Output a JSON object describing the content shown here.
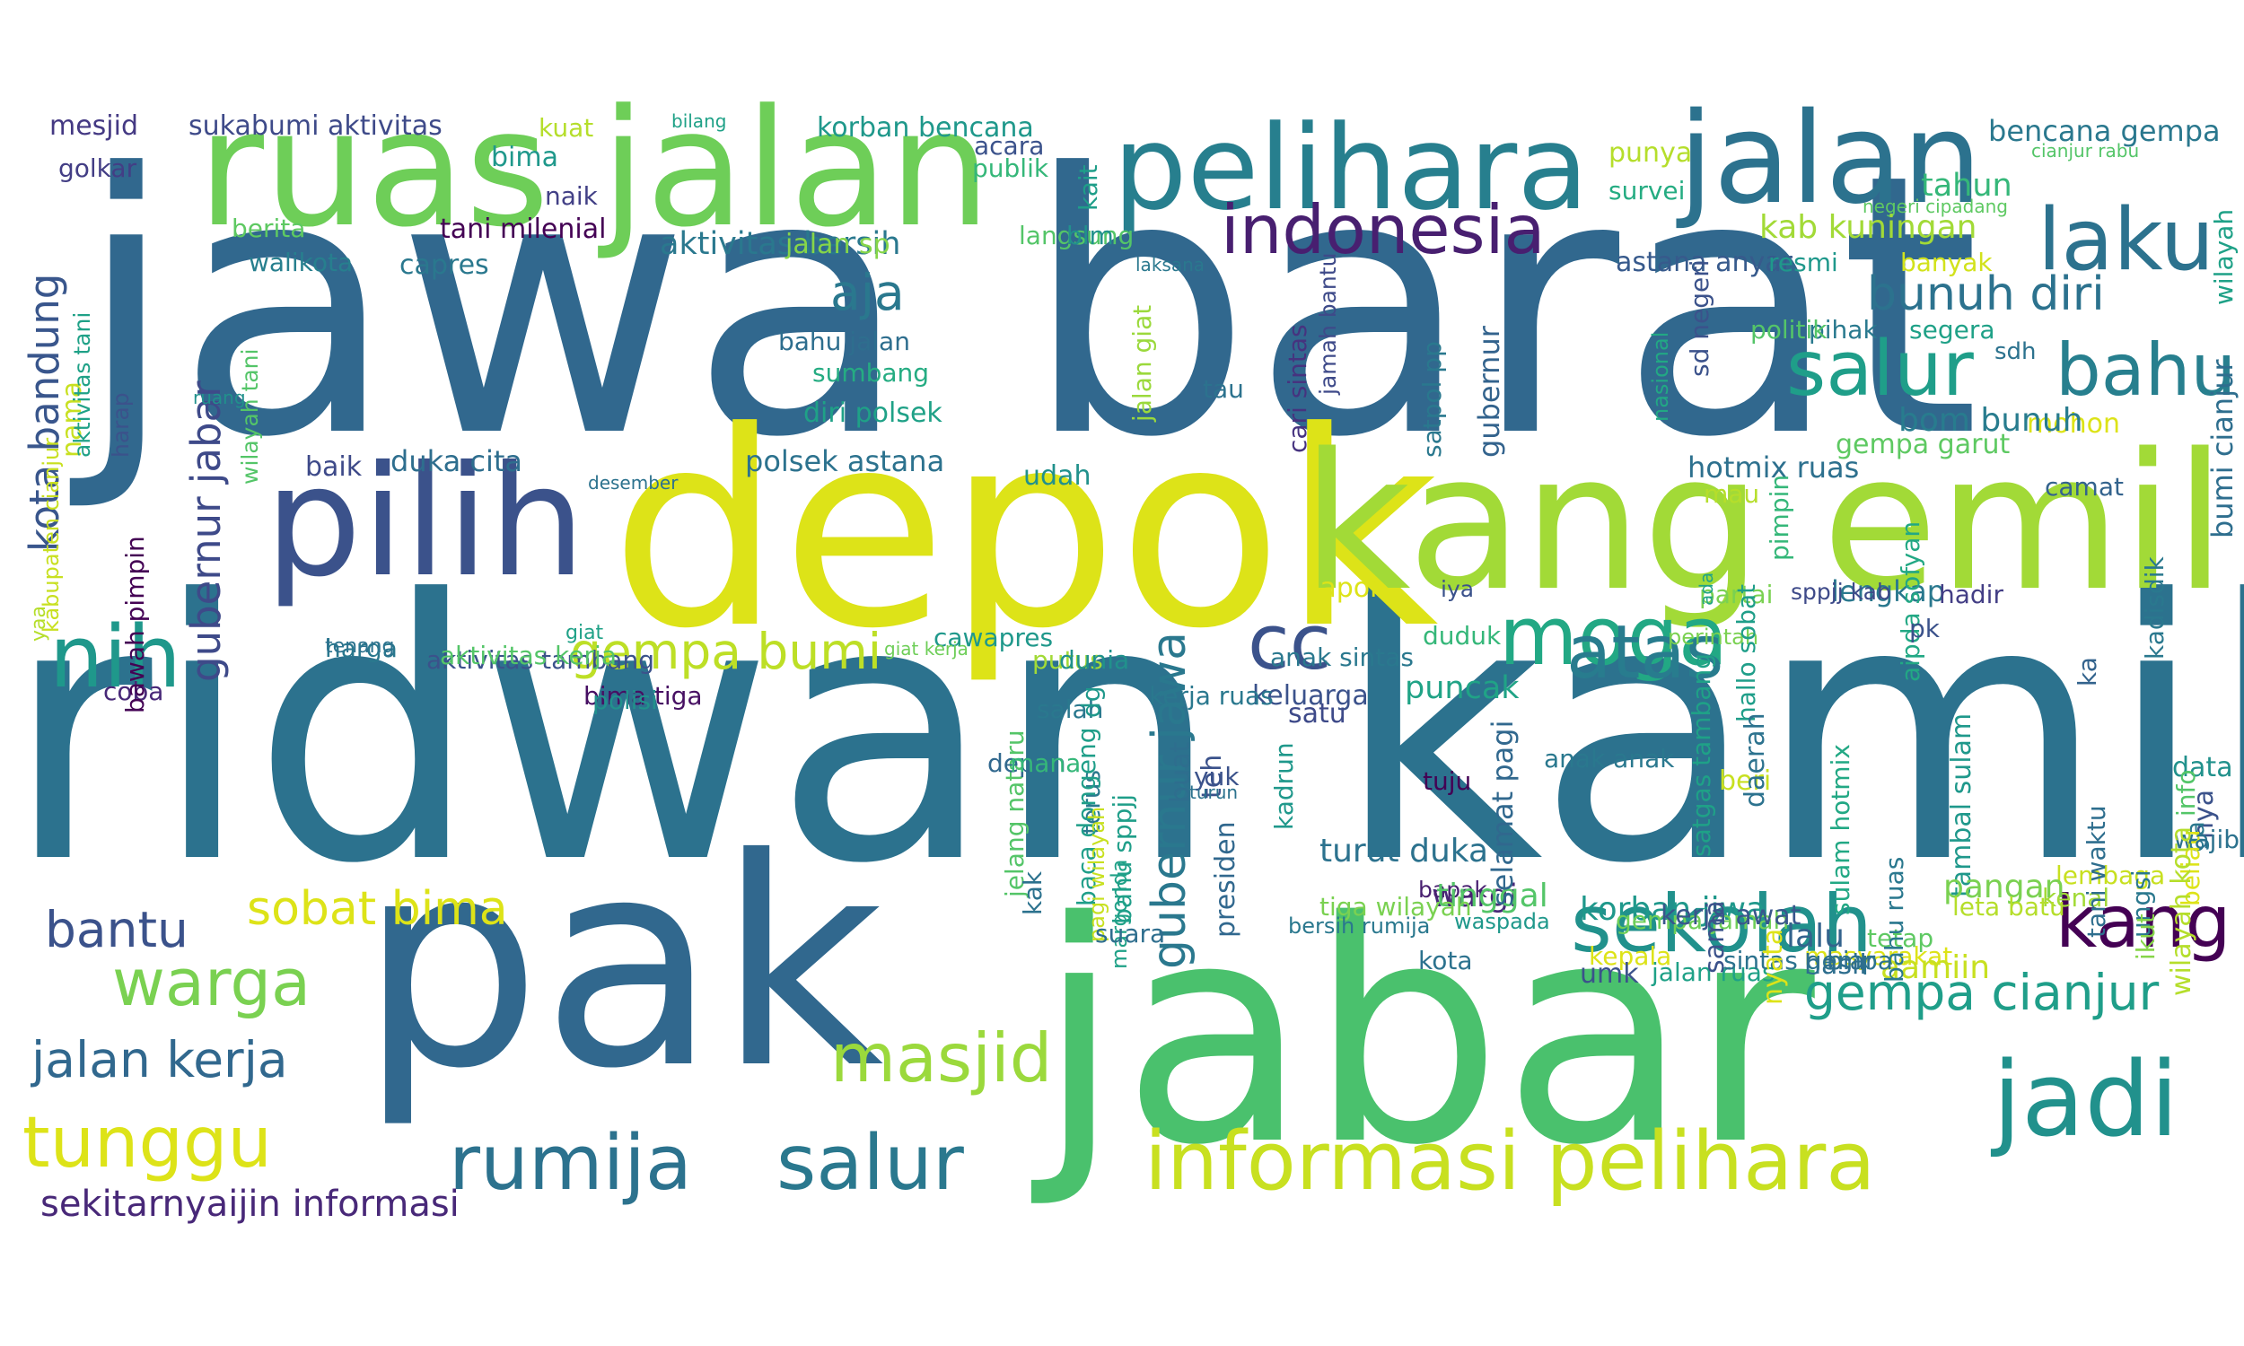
{
  "word_cloud": {
    "words": [
      {
        "text": "jawa barat",
        "color": "#31688e"
      },
      {
        "text": "ridwan kamil",
        "color": "#2c728e"
      },
      {
        "text": "depok",
        "color": "#dde318"
      },
      {
        "text": "pak",
        "color": "#31688e"
      },
      {
        "text": "jabar",
        "color": "#4ac16d"
      },
      {
        "text": "kang emil",
        "color": "#a2da37"
      },
      {
        "text": "ruas jalan",
        "color": "#6ece58"
      },
      {
        "text": "pelihara",
        "color": "#277f8e"
      },
      {
        "text": "jalan",
        "color": "#2c728e"
      },
      {
        "text": "pilih",
        "color": "#3b528b"
      },
      {
        "text": "indonesia",
        "color": "#481f70"
      },
      {
        "text": "laku",
        "color": "#2c728e"
      },
      {
        "text": "nih",
        "color": "#1f988b"
      },
      {
        "text": "cc",
        "color": "#3b528b"
      },
      {
        "text": "moga",
        "color": "#22a884"
      },
      {
        "text": "atas",
        "color": "#287c8e"
      },
      {
        "text": "salur",
        "color": "#1f9e89"
      },
      {
        "text": "bahu",
        "color": "#277f8e"
      },
      {
        "text": "informasi pelihara",
        "color": "#c8e020"
      },
      {
        "text": "jadi",
        "color": "#21918c"
      },
      {
        "text": "kang",
        "color": "#440154"
      },
      {
        "text": "sekolah",
        "color": "#21918c"
      },
      {
        "text": "rumija",
        "color": "#2c728e"
      },
      {
        "text": "salur",
        "color": "#2a788e"
      },
      {
        "text": "masjid",
        "color": "#9bd93c"
      },
      {
        "text": "tunggu",
        "color": "#dde318"
      },
      {
        "text": "warga",
        "color": "#7ad151"
      },
      {
        "text": "jalan kerja",
        "color": "#31688e"
      },
      {
        "text": "bantu",
        "color": "#3b528b"
      },
      {
        "text": "sobat bima",
        "color": "#dde318"
      },
      {
        "text": "gempa bumi",
        "color": "#bddf26"
      },
      {
        "text": "gempa cianjur",
        "color": "#1f9e89"
      },
      {
        "text": "bunuh diri",
        "color": "#2c728e"
      },
      {
        "text": "gubernur jawa",
        "color": "#2a788e"
      },
      {
        "text": "kota bandung",
        "color": "#39568c"
      },
      {
        "text": "gubernur jabar",
        "color": "#3e4a89"
      },
      {
        "text": "aja",
        "color": "#2a788e"
      },
      {
        "text": "sekitarnyaijin informasi",
        "color": "#482878"
      },
      {
        "text": "mesjid",
        "color": "#443983"
      },
      {
        "text": "sukabumi aktivitas",
        "color": "#3e4a89"
      },
      {
        "text": "kuat",
        "color": "#b5de2b"
      },
      {
        "text": "bilang",
        "color": "#1fa187"
      },
      {
        "text": "korban bencana",
        "color": "#1f988b"
      },
      {
        "text": "acara",
        "color": "#3b528b"
      },
      {
        "text": "publik",
        "color": "#35b779"
      },
      {
        "text": "kait",
        "color": "#1f9e89"
      },
      {
        "text": "punya",
        "color": "#b5de2b"
      },
      {
        "text": "survei",
        "color": "#25ac82"
      },
      {
        "text": "bencana gempa",
        "color": "#2a788e"
      },
      {
        "text": "cianjur rabu",
        "color": "#54c568"
      },
      {
        "text": "negeri cipadang",
        "color": "#5ec962"
      },
      {
        "text": "tahun",
        "color": "#35b779"
      },
      {
        "text": "wilayah",
        "color": "#1fa187"
      },
      {
        "text": "bima",
        "color": "#1f988b"
      },
      {
        "text": "naik",
        "color": "#424086"
      },
      {
        "text": "golkar",
        "color": "#433e85"
      },
      {
        "text": "berita",
        "color": "#5ec962"
      },
      {
        "text": "tani milenial",
        "color": "#440154"
      },
      {
        "text": "capres",
        "color": "#2a788e"
      },
      {
        "text": "walikota",
        "color": "#277f8e"
      },
      {
        "text": "nama",
        "color": "#c8e020"
      },
      {
        "text": "aktivitas bersih",
        "color": "#2a788e"
      },
      {
        "text": "jalan sp",
        "color": "#86d549"
      },
      {
        "text": "langsung",
        "color": "#54c568"
      },
      {
        "text": "blm",
        "color": "#21918c"
      },
      {
        "text": "laksana",
        "color": "#2a788e"
      },
      {
        "text": "kab kuningan",
        "color": "#a2da37"
      },
      {
        "text": "astana anyar",
        "color": "#375a8c"
      },
      {
        "text": "resmi",
        "color": "#1f988b"
      },
      {
        "text": "banyak",
        "color": "#d2e21b"
      },
      {
        "text": "pihak",
        "color": "#29798e"
      },
      {
        "text": "segera",
        "color": "#1fa187"
      },
      {
        "text": "politik",
        "color": "#54c568"
      },
      {
        "text": "sdh",
        "color": "#2c728e"
      },
      {
        "text": "mohon",
        "color": "#dde318"
      },
      {
        "text": "bahu jalan",
        "color": "#2e6e8e"
      },
      {
        "text": "sumbang",
        "color": "#25ac82"
      },
      {
        "text": "diri polsek",
        "color": "#1fa187"
      },
      {
        "text": "tau",
        "color": "#2c728e"
      },
      {
        "text": "cari sintas",
        "color": "#46337f"
      },
      {
        "text": "jamah bantu",
        "color": "#3e4a89"
      },
      {
        "text": "jalan giat",
        "color": "#9bd93c"
      },
      {
        "text": "satpol pp",
        "color": "#2a788e"
      },
      {
        "text": "sd negeri",
        "color": "#3b528b"
      },
      {
        "text": "nasional",
        "color": "#22a884"
      },
      {
        "text": "gubernur",
        "color": "#33638d"
      },
      {
        "text": "bom bunuh",
        "color": "#287c8e"
      },
      {
        "text": "hotmix ruas",
        "color": "#2d708e"
      },
      {
        "text": "gempa garut",
        "color": "#5ec962"
      },
      {
        "text": "camat",
        "color": "#33638d"
      },
      {
        "text": "bumi cianjur",
        "color": "#2e6e8e"
      },
      {
        "text": "ruang",
        "color": "#21918c"
      },
      {
        "text": "harap",
        "color": "#3b528b"
      },
      {
        "text": "aktivitas tani",
        "color": "#1fa187"
      },
      {
        "text": "wilayah tani",
        "color": "#54c568"
      },
      {
        "text": "baik",
        "color": "#3e4a89"
      },
      {
        "text": "duka cita",
        "color": "#2e6e8e"
      },
      {
        "text": "desember",
        "color": "#2c728e"
      },
      {
        "text": "polsek astana",
        "color": "#2c728e"
      },
      {
        "text": "udah",
        "color": "#21918c"
      },
      {
        "text": "mau",
        "color": "#b5de2b"
      },
      {
        "text": "pimpin",
        "color": "#35b779"
      },
      {
        "text": "partai",
        "color": "#7ad151"
      },
      {
        "text": "ada",
        "color": "#20a386"
      },
      {
        "text": "lapor",
        "color": "#dde318"
      },
      {
        "text": "lengkap",
        "color": "#2a788e"
      },
      {
        "text": "iya",
        "color": "#3b528b"
      },
      {
        "text": "sppjj kab",
        "color": "#3e4a89"
      },
      {
        "text": "hadir",
        "color": "#433e85"
      },
      {
        "text": "aipda sofyan",
        "color": "#22a884"
      },
      {
        "text": "kabupaten cianjur",
        "color": "#c8e020"
      },
      {
        "text": "giat",
        "color": "#1fa187"
      },
      {
        "text": "harga",
        "color": "#2a788e"
      },
      {
        "text": "duduk",
        "color": "#35b779"
      },
      {
        "text": "perintah",
        "color": "#7ad151"
      },
      {
        "text": "pk",
        "color": "#3b528b"
      },
      {
        "text": "ka",
        "color": "#33638d"
      },
      {
        "text": "yaa",
        "color": "#b5de2b"
      },
      {
        "text": "tenang",
        "color": "#2c728e"
      },
      {
        "text": "cawapres",
        "color": "#1f988b"
      },
      {
        "text": "putus",
        "color": "#a2da37"
      },
      {
        "text": "aktivitas tambang",
        "color": "#3b528b"
      },
      {
        "text": "anak sintas",
        "color": "#2a788e"
      },
      {
        "text": "sulam hotmix",
        "color": "#22a884"
      },
      {
        "text": "kadisdik",
        "color": "#2a788e"
      },
      {
        "text": "coba",
        "color": "#482878"
      },
      {
        "text": "hallo sobat",
        "color": "#1f9e89"
      },
      {
        "text": "bawah pimpin",
        "color": "#440154"
      },
      {
        "text": "aktivitas kerja",
        "color": "#54c568"
      },
      {
        "text": "bima tiga",
        "color": "#471063"
      },
      {
        "text": "polisi",
        "color": "#21918c"
      },
      {
        "text": "salah",
        "color": "#2a788e"
      },
      {
        "text": "puncak",
        "color": "#20a386"
      },
      {
        "text": "dg",
        "color": "#1f988b"
      },
      {
        "text": "keluarga",
        "color": "#3b528b"
      },
      {
        "text": "giat kerja",
        "color": "#6ece58"
      },
      {
        "text": "kerja ruas",
        "color": "#2a788e"
      },
      {
        "text": "jelang nataru",
        "color": "#54c568"
      },
      {
        "text": "satu",
        "color": "#3e4a89"
      },
      {
        "text": "dunia",
        "color": "#21918c"
      },
      {
        "text": "depan",
        "color": "#31688e"
      },
      {
        "text": "mana",
        "color": "#35b779"
      },
      {
        "text": "terus",
        "color": "#2a788e"
      },
      {
        "text": "baca dongeng",
        "color": "#1f9e89"
      },
      {
        "text": "kak",
        "color": "#2c728e"
      },
      {
        "text": "bahu sppjj",
        "color": "#1f9e89"
      },
      {
        "text": "pagi wilayah",
        "color": "#c8e020"
      },
      {
        "text": "margonda",
        "color": "#1fa187"
      },
      {
        "text": "buat",
        "color": "#2e6e8e"
      },
      {
        "text": "teh",
        "color": "#3b528b"
      },
      {
        "text": "yuk",
        "color": "#3b528b"
      },
      {
        "text": "turun",
        "color": "#2c728e"
      },
      {
        "text": "kadrun",
        "color": "#1f988b"
      },
      {
        "text": "tuju",
        "color": "#440154"
      },
      {
        "text": "anak anak",
        "color": "#2a788e"
      },
      {
        "text": "beri",
        "color": "#c8e020"
      },
      {
        "text": "satgas tambang",
        "color": "#1fa187"
      },
      {
        "text": "daerah",
        "color": "#2c728e"
      },
      {
        "text": "data",
        "color": "#21918c"
      },
      {
        "text": "nya",
        "color": "#3b528b"
      },
      {
        "text": "tambal sulam",
        "color": "#1f988b"
      },
      {
        "text": "info",
        "color": "#54c568"
      },
      {
        "text": "ga",
        "color": "#2a788e"
      },
      {
        "text": "lembaga",
        "color": "#c8e020"
      },
      {
        "text": "kenal",
        "color": "#a2da37"
      },
      {
        "text": "tetap",
        "color": "#5ec962"
      },
      {
        "text": "tani waktu",
        "color": "#2e6e8e"
      },
      {
        "text": "ungsi",
        "color": "#2a788e"
      },
      {
        "text": "ikut",
        "color": "#86d549"
      },
      {
        "text": "beliau",
        "color": "#dde318"
      },
      {
        "text": "wajib",
        "color": "#2c728e"
      },
      {
        "text": "wargi",
        "color": "#482878"
      },
      {
        "text": "bapak",
        "color": "#481f70"
      },
      {
        "text": "pangan",
        "color": "#7ad151"
      },
      {
        "text": "leta batu",
        "color": "#b5de2b"
      },
      {
        "text": "lalu",
        "color": "#33638d"
      },
      {
        "text": "suara",
        "color": "#2e6e8e"
      },
      {
        "text": "tinggal",
        "color": "#54c568"
      },
      {
        "text": "korban jiwa",
        "color": "#1f988b"
      },
      {
        "text": "gempa jamah",
        "color": "#6ece58"
      },
      {
        "text": "masyarakat",
        "color": "#dde318"
      },
      {
        "text": "biar",
        "color": "#2e6e8e"
      },
      {
        "text": "tiga wilayah",
        "color": "#7ad151"
      },
      {
        "text": "presiden",
        "color": "#31688e"
      },
      {
        "text": "bersih rumija",
        "color": "#2a788e"
      },
      {
        "text": "waspada",
        "color": "#1f988b"
      },
      {
        "text": "kepala",
        "color": "#dde318"
      },
      {
        "text": "turut duka",
        "color": "#2c728e"
      },
      {
        "text": "umk",
        "color": "#3b528b"
      },
      {
        "text": "aamiin",
        "color": "#c8e020"
      },
      {
        "text": "kota",
        "color": "#2c728e"
      },
      {
        "text": "jalan ruas",
        "color": "#1fa187"
      },
      {
        "text": "bahu ruas",
        "color": "#2a788e"
      },
      {
        "text": "wilayah kota",
        "color": "#b5de2b"
      },
      {
        "text": "selamat pagi",
        "color": "#31688e"
      },
      {
        "text": "kerja awat",
        "color": "#39568c"
      },
      {
        "text": "sintas gempa",
        "color": "#2c728e"
      },
      {
        "text": "nyata",
        "color": "#dde318"
      },
      {
        "text": "sama",
        "color": "#3b528b"
      },
      {
        "text": "hasil",
        "color": "#2e6e8e"
      },
      {
        "text": "beda",
        "color": "#21918c"
      },
      {
        "text": "lokasi",
        "color": "#31688e"
      },
      {
        "text": "kerja rumija",
        "color": "#35b779"
      },
      {
        "text": "bangun",
        "color": "#2a788e"
      },
      {
        "text": "selamat",
        "color": "#54c568"
      }
    ]
  }
}
